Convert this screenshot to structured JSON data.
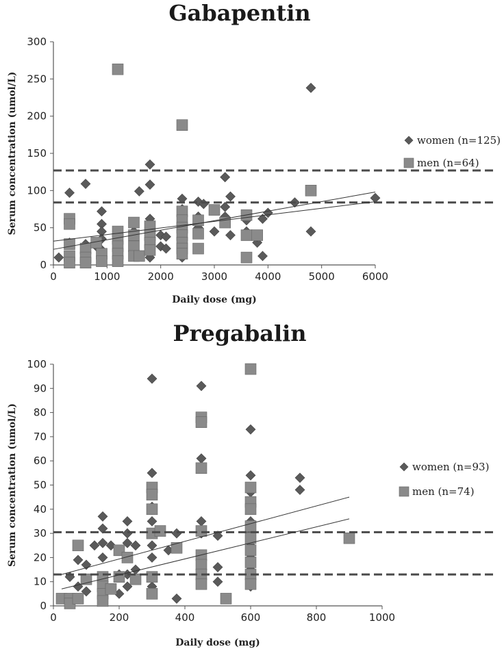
{
  "chart_data": [
    {
      "type": "scatter",
      "title": "Gabapentin",
      "xlabel": "Daily dose (mg)",
      "ylabel": "Serum concentration (umol/L)",
      "xlim": [
        0,
        6000
      ],
      "ylim": [
        0,
        300
      ],
      "xticks": [
        "0",
        "1000",
        "2000",
        "3000",
        "4000",
        "5000",
        "6000"
      ],
      "yticks": [
        "0",
        "50",
        "100",
        "150",
        "200",
        "250",
        "300"
      ],
      "grid": false,
      "legend_position": "right",
      "reference_lines_y": [
        84,
        127
      ],
      "series": [
        {
          "name": "women (n=125)",
          "marker": "diamond",
          "color": "#5a5a5a",
          "points": [
            [
              100,
              10
            ],
            [
              300,
              97
            ],
            [
              300,
              30
            ],
            [
              300,
              5
            ],
            [
              600,
              109
            ],
            [
              600,
              28
            ],
            [
              600,
              15
            ],
            [
              800,
              25
            ],
            [
              900,
              72
            ],
            [
              900,
              55
            ],
            [
              900,
              45
            ],
            [
              900,
              35
            ],
            [
              900,
              20
            ],
            [
              900,
              8
            ],
            [
              1200,
              40
            ],
            [
              1200,
              20
            ],
            [
              1200,
              5
            ],
            [
              1500,
              45
            ],
            [
              1500,
              20
            ],
            [
              1600,
              99
            ],
            [
              1800,
              135
            ],
            [
              1800,
              108
            ],
            [
              1800,
              62
            ],
            [
              1800,
              40
            ],
            [
              1800,
              25
            ],
            [
              1800,
              10
            ],
            [
              2000,
              40
            ],
            [
              2000,
              25
            ],
            [
              2100,
              38
            ],
            [
              2100,
              22
            ],
            [
              2400,
              89
            ],
            [
              2400,
              75
            ],
            [
              2400,
              60
            ],
            [
              2400,
              45
            ],
            [
              2400,
              30
            ],
            [
              2400,
              20
            ],
            [
              2400,
              10
            ],
            [
              2700,
              85
            ],
            [
              2700,
              65
            ],
            [
              2700,
              50
            ],
            [
              2800,
              82
            ],
            [
              3000,
              45
            ],
            [
              3200,
              118
            ],
            [
              3200,
              78
            ],
            [
              3200,
              65
            ],
            [
              3300,
              92
            ],
            [
              3300,
              40
            ],
            [
              3600,
              60
            ],
            [
              3600,
              45
            ],
            [
              3800,
              30
            ],
            [
              3800,
              38
            ],
            [
              3900,
              12
            ],
            [
              3900,
              62
            ],
            [
              4000,
              70
            ],
            [
              4500,
              84
            ],
            [
              4800,
              238
            ],
            [
              4800,
              45
            ],
            [
              6000,
              90
            ]
          ],
          "trendline": [
            [
              0,
              21
            ],
            [
              6000,
              98
            ]
          ]
        },
        {
          "name": "men (n=64)",
          "marker": "square",
          "color": "#8a8a8a",
          "points": [
            [
              300,
              62
            ],
            [
              300,
              55
            ],
            [
              300,
              28
            ],
            [
              300,
              12
            ],
            [
              300,
              3
            ],
            [
              600,
              22
            ],
            [
              600,
              10
            ],
            [
              600,
              3
            ],
            [
              800,
              30
            ],
            [
              900,
              15
            ],
            [
              900,
              5
            ],
            [
              1200,
              263
            ],
            [
              1200,
              45
            ],
            [
              1200,
              35
            ],
            [
              1200,
              25
            ],
            [
              1200,
              15
            ],
            [
              1200,
              5
            ],
            [
              1500,
              57
            ],
            [
              1500,
              40
            ],
            [
              1500,
              25
            ],
            [
              1500,
              12
            ],
            [
              1600,
              12
            ],
            [
              1800,
              52
            ],
            [
              1800,
              40
            ],
            [
              1800,
              30
            ],
            [
              1800,
              20
            ],
            [
              2400,
              188
            ],
            [
              2400,
              72
            ],
            [
              2400,
              60
            ],
            [
              2400,
              50
            ],
            [
              2400,
              40
            ],
            [
              2400,
              30
            ],
            [
              2400,
              22
            ],
            [
              2400,
              15
            ],
            [
              2700,
              60
            ],
            [
              2700,
              42
            ],
            [
              2700,
              22
            ],
            [
              3000,
              74
            ],
            [
              3200,
              57
            ],
            [
              3600,
              67
            ],
            [
              3600,
              40
            ],
            [
              3600,
              10
            ],
            [
              3800,
              40
            ],
            [
              4800,
              100
            ]
          ],
          "trendline": [
            [
              0,
              32
            ],
            [
              6000,
              85
            ]
          ]
        }
      ]
    },
    {
      "type": "scatter",
      "title": "Pregabalin",
      "xlabel": "Daily dose (mg)",
      "ylabel": "Serum concentration (umol/L)",
      "xlim": [
        0,
        1000
      ],
      "ylim": [
        0,
        100
      ],
      "xticks": [
        "0",
        "200",
        "400",
        "600",
        "800",
        "1000"
      ],
      "yticks": [
        "0",
        "10",
        "20",
        "30",
        "40",
        "50",
        "60",
        "70",
        "80",
        "90",
        "100"
      ],
      "grid": false,
      "legend_position": "right",
      "reference_lines_y": [
        13,
        30.5
      ],
      "series": [
        {
          "name": "women (n=93)",
          "marker": "diamond",
          "color": "#5a5a5a",
          "points": [
            [
              50,
              12
            ],
            [
              50,
              3
            ],
            [
              75,
              19
            ],
            [
              75,
              8
            ],
            [
              100,
              17
            ],
            [
              100,
              6
            ],
            [
              125,
              25
            ],
            [
              150,
              37
            ],
            [
              150,
              32
            ],
            [
              150,
              26
            ],
            [
              150,
              20
            ],
            [
              150,
              12
            ],
            [
              150,
              5
            ],
            [
              175,
              25
            ],
            [
              200,
              13
            ],
            [
              200,
              5
            ],
            [
              225,
              35
            ],
            [
              225,
              30
            ],
            [
              225,
              26
            ],
            [
              225,
              13
            ],
            [
              225,
              8
            ],
            [
              250,
              25
            ],
            [
              250,
              15
            ],
            [
              300,
              94
            ],
            [
              300,
              55
            ],
            [
              300,
              48
            ],
            [
              300,
              41
            ],
            [
              300,
              35
            ],
            [
              300,
              30
            ],
            [
              300,
              25
            ],
            [
              300,
              20
            ],
            [
              300,
              12
            ],
            [
              300,
              8
            ],
            [
              350,
              23
            ],
            [
              375,
              30
            ],
            [
              375,
              3
            ],
            [
              450,
              91
            ],
            [
              450,
              61
            ],
            [
              450,
              35
            ],
            [
              450,
              30
            ],
            [
              450,
              20
            ],
            [
              450,
              12
            ],
            [
              500,
              29
            ],
            [
              500,
              16
            ],
            [
              500,
              10
            ],
            [
              600,
              73
            ],
            [
              600,
              54
            ],
            [
              600,
              47
            ],
            [
              600,
              40
            ],
            [
              600,
              35
            ],
            [
              600,
              30
            ],
            [
              600,
              25
            ],
            [
              600,
              20
            ],
            [
              600,
              15
            ],
            [
              600,
              12
            ],
            [
              600,
              8
            ],
            [
              750,
              53
            ],
            [
              750,
              48
            ]
          ],
          "trendline": [
            [
              25,
              13
            ],
            [
              900,
              45
            ]
          ]
        },
        {
          "name": "men (n=74)",
          "marker": "square",
          "color": "#8a8a8a",
          "points": [
            [
              25,
              3
            ],
            [
              50,
              3
            ],
            [
              50,
              1
            ],
            [
              75,
              25
            ],
            [
              75,
              3
            ],
            [
              100,
              11
            ],
            [
              150,
              12
            ],
            [
              150,
              8
            ],
            [
              150,
              5
            ],
            [
              150,
              2
            ],
            [
              175,
              7
            ],
            [
              200,
              23
            ],
            [
              200,
              12
            ],
            [
              225,
              20
            ],
            [
              250,
              11
            ],
            [
              300,
              49
            ],
            [
              300,
              46
            ],
            [
              300,
              40
            ],
            [
              300,
              30
            ],
            [
              300,
              12
            ],
            [
              300,
              5
            ],
            [
              325,
              31
            ],
            [
              375,
              24
            ],
            [
              450,
              78
            ],
            [
              450,
              76
            ],
            [
              450,
              57
            ],
            [
              450,
              31
            ],
            [
              450,
              21
            ],
            [
              450,
              17
            ],
            [
              450,
              13
            ],
            [
              450,
              9
            ],
            [
              525,
              3
            ],
            [
              600,
              98
            ],
            [
              600,
              49
            ],
            [
              600,
              43
            ],
            [
              600,
              40
            ],
            [
              600,
              33
            ],
            [
              600,
              28
            ],
            [
              600,
              23
            ],
            [
              600,
              18
            ],
            [
              600,
              13
            ],
            [
              600,
              9
            ],
            [
              900,
              28
            ]
          ],
          "trendline": [
            [
              25,
              7
            ],
            [
              900,
              36
            ]
          ]
        }
      ]
    }
  ]
}
